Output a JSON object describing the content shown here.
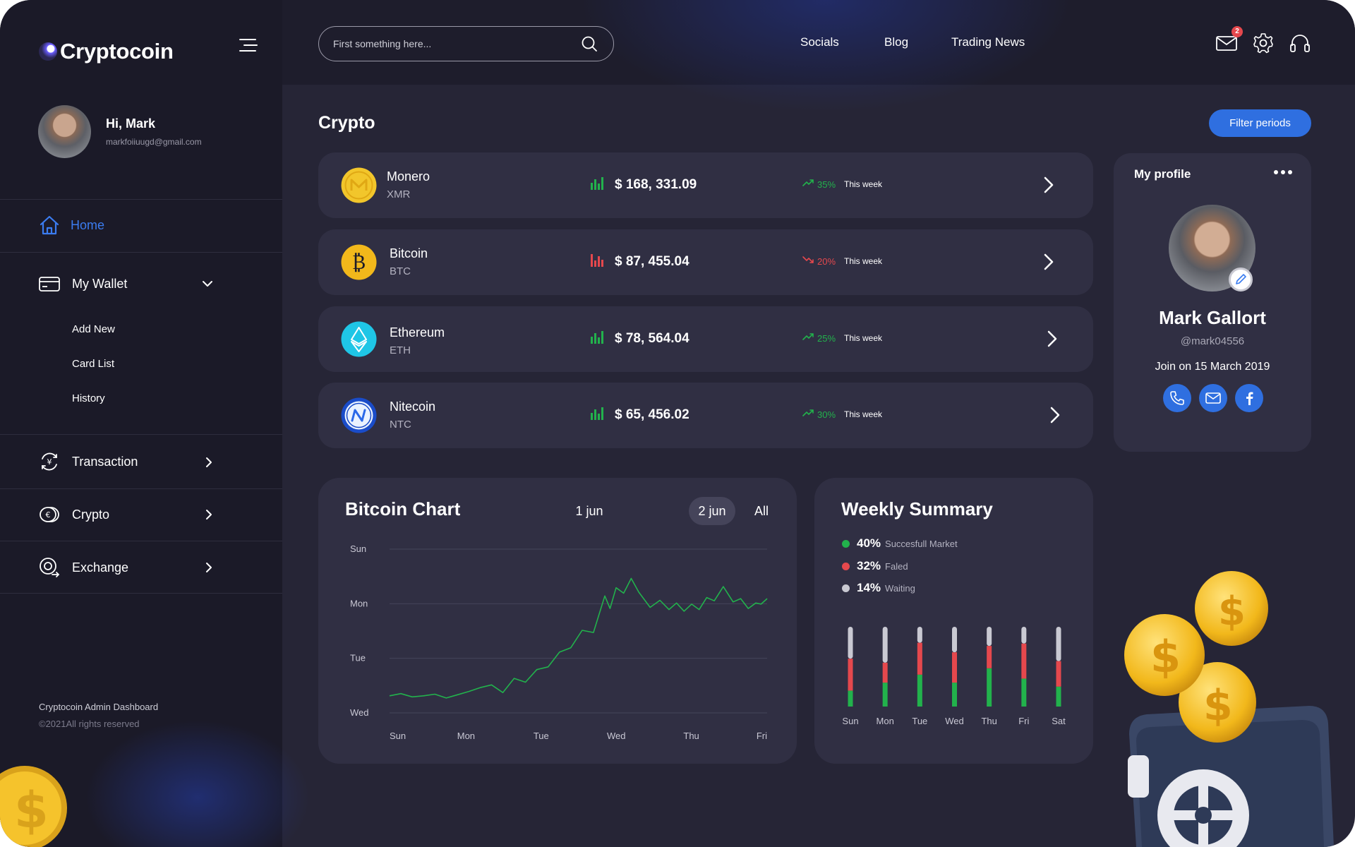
{
  "brand": {
    "name": "Cryptocoin"
  },
  "user": {
    "greeting": "Hi, Mark",
    "email": "markfoiiuugd@gmail.com"
  },
  "sidebar": {
    "home": "Home",
    "wallet": {
      "label": "My Wallet",
      "items": [
        "Add New",
        "Card List",
        "History"
      ]
    },
    "transaction": "Transaction",
    "crypto": "Crypto",
    "exchange": "Exchange",
    "footer_title": "Cryptocoin Admin Dashboard",
    "footer_copy": "©2021All rights reserved"
  },
  "header": {
    "search_placeholder": "First something here...",
    "links": [
      "Socials",
      "Blog",
      "Trading News"
    ],
    "notifications": "2"
  },
  "main": {
    "title": "Crypto",
    "filter_label": "Filter periods",
    "coins": [
      {
        "name": "Monero",
        "symbol": "XMR",
        "price": "$ 168, 331.09",
        "change": "35%",
        "period": "This week",
        "direction": "up"
      },
      {
        "name": "Bitcoin",
        "symbol": "BTC",
        "price": "$ 87, 455.04",
        "change": "20%",
        "period": "This week",
        "direction": "down"
      },
      {
        "name": "Ethereum",
        "symbol": "ETH",
        "price": "$ 78, 564.04",
        "change": "25%",
        "period": "This week",
        "direction": "up"
      },
      {
        "name": "Nitecoin",
        "symbol": "NTC",
        "price": "$ 65, 456.02",
        "change": "30%",
        "period": "This week",
        "direction": "up"
      }
    ]
  },
  "profile": {
    "title": "My profile",
    "name": "Mark Gallort",
    "handle": "@mark04556",
    "joined": "Join on 15 March 2019"
  },
  "bitcoin_chart": {
    "title": "Bitcoin Chart",
    "ranges": [
      "1 jun",
      "2 jun",
      "All"
    ],
    "active_range": "2 jun"
  },
  "weekly_summary": {
    "title": "Weekly Summary",
    "legend": [
      {
        "pct": "40%",
        "label": "Succesfull Market",
        "color": "#22b24c"
      },
      {
        "pct": "32%",
        "label": "Faled",
        "color": "#e5484d"
      },
      {
        "pct": "14%",
        "label": "Waiting",
        "color": "#c9c9d2"
      }
    ]
  },
  "colors": {
    "accent": "#3b7cf0",
    "up": "#22b24c",
    "down": "#e5484d",
    "card": "#302f43"
  },
  "chart_data": [
    {
      "type": "line",
      "title": "Bitcoin Chart",
      "categories": [
        "Sun",
        "Mon",
        "Tue",
        "Wed",
        "Thu",
        "Fri"
      ],
      "y_categories": [
        "Sun",
        "Mon",
        "Tue",
        "Wed"
      ],
      "x": [
        0,
        0.15,
        0.3,
        0.45,
        0.6,
        0.75,
        0.9,
        1.05,
        1.2,
        1.35,
        1.5,
        1.65,
        1.8,
        1.95,
        2.1,
        2.25,
        2.4,
        2.55,
        2.7,
        2.85,
        2.92,
        3.0,
        3.1,
        3.2,
        3.3,
        3.45,
        3.58,
        3.7,
        3.8,
        3.9,
        4.0,
        4.1,
        4.2,
        4.3,
        4.42,
        4.55,
        4.65,
        4.75,
        4.85,
        4.92,
        5.0
      ],
      "series": [
        {
          "values": [
            0.3,
            0.34,
            0.28,
            0.3,
            0.33,
            0.26,
            0.32,
            0.38,
            0.45,
            0.5,
            0.36,
            0.62,
            0.55,
            0.78,
            0.83,
            1.1,
            1.18,
            1.5,
            1.46,
            2.13,
            1.9,
            2.28,
            2.18,
            2.45,
            2.2,
            1.92,
            2.05,
            1.88,
            2.0,
            1.85,
            1.98,
            1.88,
            2.1,
            2.04,
            2.3,
            2.02,
            2.08,
            1.9,
            2.0,
            1.98,
            2.08
          ]
        }
      ]
    },
    {
      "type": "bar",
      "title": "Weekly Summary",
      "categories": [
        "Sun",
        "Mon",
        "Tue",
        "Wed",
        "Thu",
        "Fri",
        "Sat"
      ],
      "series": [
        {
          "name": "Succesfull Market",
          "values": [
            20,
            30,
            40,
            30,
            48,
            35,
            25
          ]
        },
        {
          "name": "Faled",
          "values": [
            40,
            25,
            40,
            38,
            28,
            44,
            32
          ]
        },
        {
          "name": "Waiting",
          "values": [
            40,
            45,
            20,
            32,
            24,
            21,
            43
          ]
        }
      ]
    }
  ]
}
